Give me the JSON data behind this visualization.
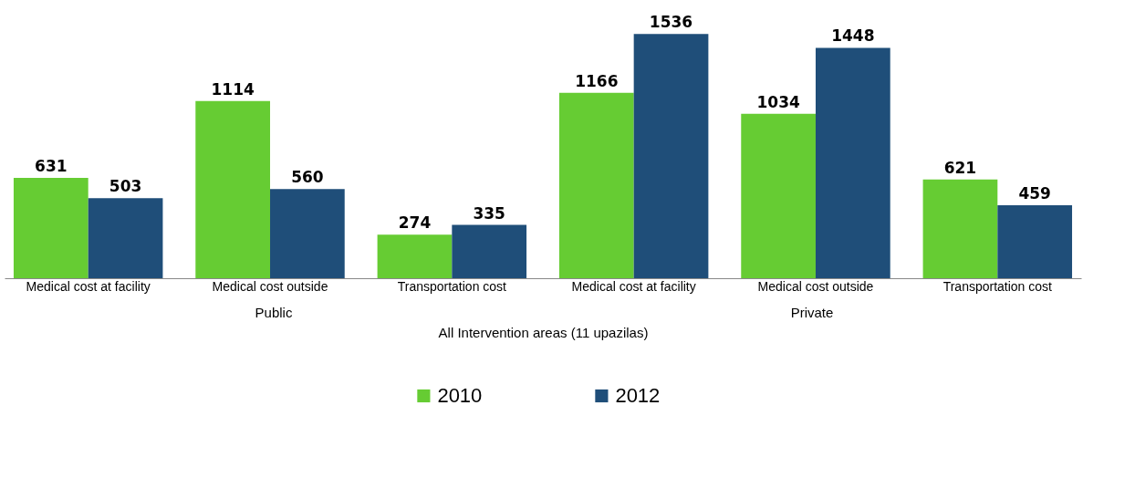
{
  "chart_data": {
    "type": "bar",
    "categories": [
      "Medical cost at facility",
      "Medical cost outside",
      "Transportation cost",
      "Medical cost at facility",
      "Medical cost outside",
      "Transportation cost"
    ],
    "series": [
      {
        "name": "2010",
        "color": "#66cc33",
        "values": [
          631,
          1114,
          274,
          1166,
          1034,
          621
        ]
      },
      {
        "name": "2012",
        "color": "#1f4e79",
        "values": [
          503,
          560,
          335,
          1536,
          1448,
          459
        ]
      }
    ],
    "annotations": [
      "Public",
      "Private"
    ],
    "xlabel": "All Intervention areas (11 upazilas)",
    "data_labels": true,
    "legend": "bottom",
    "grid": false
  }
}
